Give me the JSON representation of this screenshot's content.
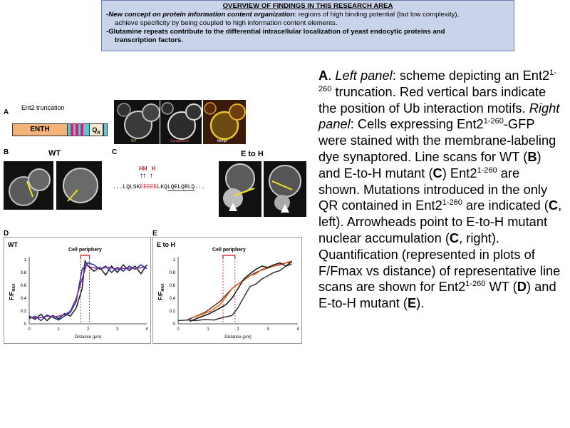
{
  "overview": {
    "title": "OVERVIEW OF FINDINGS IN THIS RESEARCH AREA",
    "finding1_bold": "-New concept on protein information content organization",
    "finding1_rest": ": regions of high binding potential (but low complexity),",
    "finding1_cont": "achieve specificity by being coupled to high information content elements.",
    "finding2_line1": "-Glutamine repeats contribute to the differential intracellular localization of yeast endocytic proteins and",
    "finding2_line2": "transcription factors."
  },
  "figure": {
    "panel_a": {
      "letter": "A",
      "title": "Ent2 truncation",
      "domain1": "ENTH",
      "domain2": "Q",
      "domain2_sub": "R",
      "image_labels": [
        "WT",
        "Synaptored",
        "Merge"
      ]
    },
    "panel_b": {
      "letter": "B",
      "title": "WT"
    },
    "panel_c": {
      "letter": "C",
      "title": "E to H",
      "mut_labels": [
        "H",
        "H",
        "H"
      ],
      "seq_prefix": "...LQLSK",
      "seq_red": "EEEEE",
      "seq_mid": "LKQ",
      "seq_qr": "LQELQRLQ",
      "seq_end": "..."
    },
    "panel_d": {
      "letter": "D",
      "plot_label": "WT",
      "periphery": "Cell periphery",
      "xlabel": "Distance (µm)",
      "ylabel_main": "F/F",
      "ylabel_sub": "MAX"
    },
    "panel_e": {
      "letter": "E",
      "plot_label": "E to H",
      "periphery": "Cell periphery",
      "xlabel": "Distance (µm)",
      "ylabel_main": "F/F",
      "ylabel_sub": "MAX"
    }
  },
  "chart_data": [
    {
      "type": "line",
      "xlabel": "Distance (µm)",
      "ylabel": "F/FMAX",
      "xlim": [
        0,
        4
      ],
      "ylim": [
        0,
        1
      ],
      "xticks": [
        "0",
        "1",
        "2",
        "3",
        "4"
      ],
      "yticks": [
        "0",
        "0.2",
        "0.4",
        "0.6",
        "0.8",
        "1"
      ],
      "periphery_lines": [
        1.75,
        2.05
      ],
      "series": [
        {
          "color": "#1a1a1a",
          "x": [
            0,
            0.2,
            0.4,
            0.6,
            0.8,
            1.0,
            1.2,
            1.4,
            1.6,
            1.8,
            1.9,
            2.0,
            2.2,
            2.4,
            2.6,
            2.8,
            3.0,
            3.2,
            3.4,
            3.6,
            3.8,
            4.0
          ],
          "y": [
            0.12,
            0.07,
            0.15,
            0.05,
            0.13,
            0.08,
            0.16,
            0.12,
            0.25,
            0.55,
            0.98,
            0.9,
            0.82,
            0.88,
            0.76,
            0.9,
            0.8,
            0.92,
            0.83,
            0.9,
            0.78,
            0.92
          ]
        },
        {
          "color": "#1f2f9e",
          "x": [
            0,
            0.2,
            0.4,
            0.6,
            0.8,
            1.0,
            1.2,
            1.4,
            1.6,
            1.7,
            1.8,
            2.0,
            2.2,
            2.4,
            2.6,
            2.8,
            3.0,
            3.2,
            3.4,
            3.6,
            3.8,
            4.0
          ],
          "y": [
            0.08,
            0.12,
            0.05,
            0.14,
            0.1,
            0.06,
            0.12,
            0.18,
            0.35,
            0.6,
            0.85,
            0.95,
            0.92,
            0.85,
            0.9,
            0.8,
            0.88,
            0.82,
            0.9,
            0.85,
            0.92,
            0.86
          ]
        },
        {
          "color": "#7b2c9b",
          "x": [
            0,
            0.3,
            0.6,
            0.9,
            1.2,
            1.4,
            1.6,
            1.8,
            1.95,
            2.1,
            2.4,
            2.7,
            3.0,
            3.3,
            3.6,
            3.9
          ],
          "y": [
            0.1,
            0.09,
            0.12,
            0.11,
            0.14,
            0.2,
            0.4,
            0.7,
            0.92,
            0.88,
            0.86,
            0.88,
            0.85,
            0.87,
            0.86,
            0.88
          ]
        }
      ]
    },
    {
      "type": "line",
      "xlabel": "Distance (µm)",
      "ylabel": "F/FMAX",
      "xlim": [
        0,
        4
      ],
      "ylim": [
        0,
        1
      ],
      "xticks": [
        "0",
        "1",
        "2",
        "3",
        "4"
      ],
      "yticks": [
        "0",
        "0.2",
        "0.4",
        "0.6",
        "0.8",
        "1"
      ],
      "periphery_lines": [
        1.5,
        1.9
      ],
      "series": [
        {
          "color": "#333333",
          "x": [
            0,
            0.3,
            0.6,
            0.9,
            1.2,
            1.5,
            1.8,
            2.0,
            2.2,
            2.4,
            2.6,
            2.8,
            3.0,
            3.2,
            3.4,
            3.6,
            3.8
          ],
          "y": [
            0.05,
            0.06,
            0.05,
            0.07,
            0.06,
            0.1,
            0.13,
            0.25,
            0.42,
            0.58,
            0.62,
            0.7,
            0.75,
            0.8,
            0.83,
            0.9,
            0.93
          ]
        },
        {
          "color": "#6b2a10",
          "x": [
            0.3,
            0.6,
            0.9,
            1.2,
            1.4,
            1.6,
            1.8,
            2.0,
            2.2,
            2.4,
            2.6,
            2.8,
            3.0,
            3.2,
            3.4,
            3.6,
            3.8
          ],
          "y": [
            0.06,
            0.12,
            0.18,
            0.28,
            0.35,
            0.45,
            0.55,
            0.62,
            0.68,
            0.75,
            0.8,
            0.84,
            0.87,
            0.9,
            0.92,
            0.95,
            0.96
          ]
        },
        {
          "color": "#e0601a",
          "x": [
            0.5,
            0.8,
            1.1,
            1.4,
            1.6,
            1.8,
            2.0,
            2.2,
            2.4,
            2.6,
            2.8,
            3.0,
            3.2,
            3.4,
            3.6,
            3.8
          ],
          "y": [
            0.1,
            0.15,
            0.2,
            0.3,
            0.42,
            0.55,
            0.62,
            0.68,
            0.75,
            0.78,
            0.85,
            0.88,
            0.9,
            0.93,
            0.95,
            0.98
          ]
        },
        {
          "color": "#111111",
          "x": [
            0.4,
            0.7,
            1.0,
            1.3,
            1.6,
            1.8,
            2.0,
            2.2,
            2.4,
            2.6,
            2.8,
            3.0,
            3.2,
            3.4,
            3.6,
            3.8
          ],
          "y": [
            0.04,
            0.1,
            0.15,
            0.22,
            0.3,
            0.4,
            0.55,
            0.7,
            0.78,
            0.85,
            0.9,
            0.88,
            0.92,
            0.95,
            0.9,
            0.97
          ]
        }
      ]
    }
  ],
  "caption": {
    "p1": "A",
    "p2": ". ",
    "p3": "Left panel",
    "p4": ": scheme depicting an Ent2",
    "p5": "1-260",
    "p6": " truncation. Red vertical bars indicate the position of Ub interaction motifs. ",
    "p7": "Right panel",
    "p8": ": Cells expressing Ent2",
    "p9": "1-260",
    "p10": "-GFP were stained with the membrane-labeling dye synaptored. Line scans for WT (",
    "p11": "B",
    "p12": ") and E-to-H mutant (",
    "p13": "C",
    "p14": ") Ent2",
    "p15": "1-260",
    "p16": " are shown. Mutations introduced in the only QR contained in Ent2",
    "p17": "1-260",
    "p18": " are indicated (",
    "p19": "C",
    "p20": ", left). Arrowheads point to E-to-H mutant nuclear accumulation (",
    "p21": "C",
    "p22": ", right). Quantification (represented in plots of F/Fmax vs distance) of representative line scans are shown for Ent2",
    "p23": "1-260",
    "p24": " WT (",
    "p25": "D",
    "p26": ") and E-to-H mutant (",
    "p27": "E",
    "p28": ")."
  }
}
